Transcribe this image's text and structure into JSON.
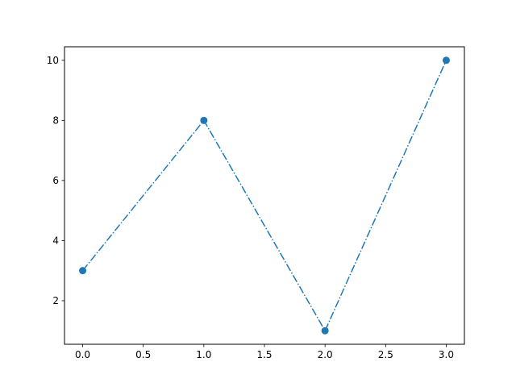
{
  "chart_data": {
    "type": "line",
    "title": "",
    "xlabel": "",
    "ylabel": "",
    "x": [
      0,
      1,
      2,
      3
    ],
    "series": [
      {
        "values": [
          3,
          8,
          1,
          10
        ],
        "color": "#1f77b4",
        "linestyle": "dashdot",
        "marker": "circle"
      }
    ],
    "xlim": [
      -0.15,
      3.15
    ],
    "ylim": [
      0.55,
      10.45
    ],
    "xticks": [
      "0.0",
      "0.5",
      "1.0",
      "1.5",
      "2.0",
      "2.5",
      "3.0"
    ],
    "yticks": [
      "2",
      "4",
      "6",
      "8",
      "10"
    ],
    "grid": false
  }
}
